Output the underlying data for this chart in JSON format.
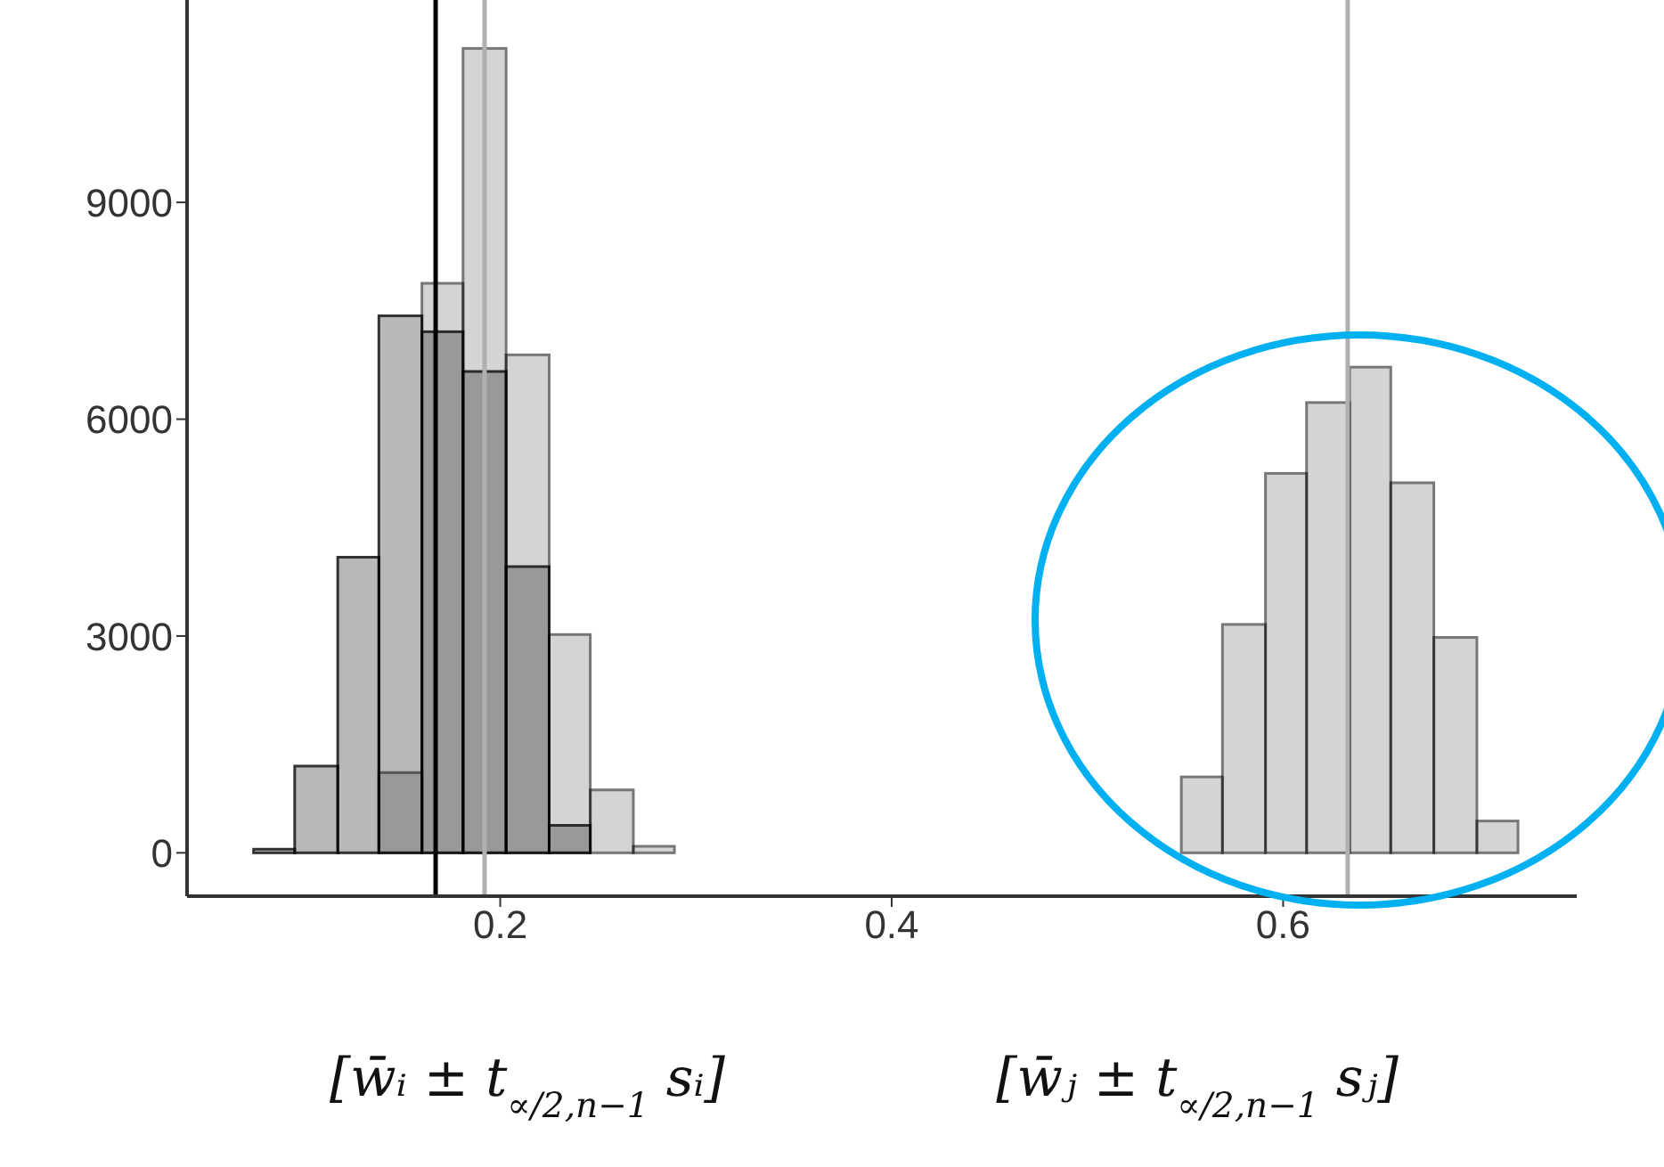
{
  "chart_data": {
    "type": "histogram",
    "bins": [
      0.074,
      0.095,
      0.117,
      0.138,
      0.16,
      0.181,
      0.203,
      0.225,
      0.246,
      0.268,
      0.289,
      0.548,
      0.569,
      0.591,
      0.612,
      0.634,
      0.655,
      0.677,
      0.699,
      0.72
    ],
    "series": [
      {
        "color": "#b8b8b8",
        "values": [
          50,
          1200,
          4090,
          7430,
          7210,
          6660,
          3960,
          380,
          null,
          null,
          null,
          null,
          null,
          null,
          null,
          null,
          null,
          null,
          null
        ]
      },
      {
        "color": "#d4d4d4",
        "values": [
          null,
          null,
          null,
          1110,
          7880,
          11130,
          6890,
          3020,
          870,
          90,
          0,
          1050,
          3160,
          5250,
          6230,
          6720,
          5120,
          2980,
          440
        ]
      }
    ],
    "xlim": [
      0.04,
      0.75
    ],
    "xticks": [
      0.2,
      0.4,
      0.6
    ],
    "ylim": [
      -600,
      11800
    ],
    "yticks": [
      0,
      3000,
      6000,
      9000
    ],
    "ref_lines": [
      {
        "axis": "x",
        "value": 0.167,
        "color": "#000000"
      },
      {
        "axis": "x",
        "value": 0.192,
        "color": "#b0b0b0"
      },
      {
        "axis": "x",
        "value": 0.633,
        "color": "#b0b0b0"
      }
    ],
    "annotations": [
      "[w̄ᵢ ± t$_{∝/2,n−1}$ sᵢ]",
      "[w̄ⱼ ± t$_{∝/2,n−1}$ sⱼ]"
    ]
  }
}
